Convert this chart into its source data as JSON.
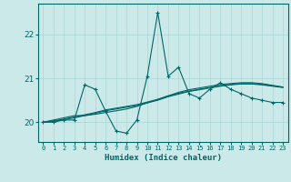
{
  "title": "",
  "xlabel": "Humidex (Indice chaleur)",
  "ylabel": "",
  "bg_color": "#cce9e9",
  "grid_color": "#aad4d4",
  "line_color": "#006666",
  "xlim": [
    -0.5,
    23.5
  ],
  "ylim": [
    19.55,
    22.7
  ],
  "yticks": [
    20,
    21,
    22
  ],
  "xtick_labels": [
    "0",
    "1",
    "2",
    "3",
    "4",
    "5",
    "6",
    "7",
    "8",
    "9",
    "10",
    "11",
    "12",
    "13",
    "14",
    "15",
    "16",
    "17",
    "18",
    "19",
    "20",
    "21",
    "22",
    "23"
  ],
  "series_main": [
    20.0,
    20.0,
    20.05,
    20.05,
    20.85,
    20.75,
    20.25,
    19.8,
    19.75,
    20.05,
    21.05,
    22.5,
    21.05,
    21.25,
    20.65,
    20.55,
    20.75,
    20.9,
    20.75,
    20.65,
    20.55,
    20.5,
    20.45,
    20.45
  ],
  "series_smooth1": [
    20.0,
    20.05,
    20.1,
    20.15,
    20.15,
    20.18,
    20.22,
    20.26,
    20.3,
    20.36,
    20.44,
    20.52,
    20.6,
    20.68,
    20.74,
    20.78,
    20.82,
    20.86,
    20.88,
    20.9,
    20.9,
    20.88,
    20.84,
    20.8
  ],
  "series_smooth2": [
    20.0,
    20.02,
    20.06,
    20.1,
    20.15,
    20.2,
    20.26,
    20.3,
    20.34,
    20.38,
    20.44,
    20.5,
    20.58,
    20.64,
    20.7,
    20.74,
    20.78,
    20.82,
    20.85,
    20.87,
    20.87,
    20.85,
    20.82,
    20.79
  ],
  "series_smooth3": [
    20.0,
    20.03,
    20.07,
    20.12,
    20.17,
    20.22,
    20.28,
    20.32,
    20.36,
    20.4,
    20.46,
    20.52,
    20.6,
    20.66,
    20.71,
    20.75,
    20.79,
    20.83,
    20.86,
    20.88,
    20.88,
    20.86,
    20.83,
    20.8
  ]
}
